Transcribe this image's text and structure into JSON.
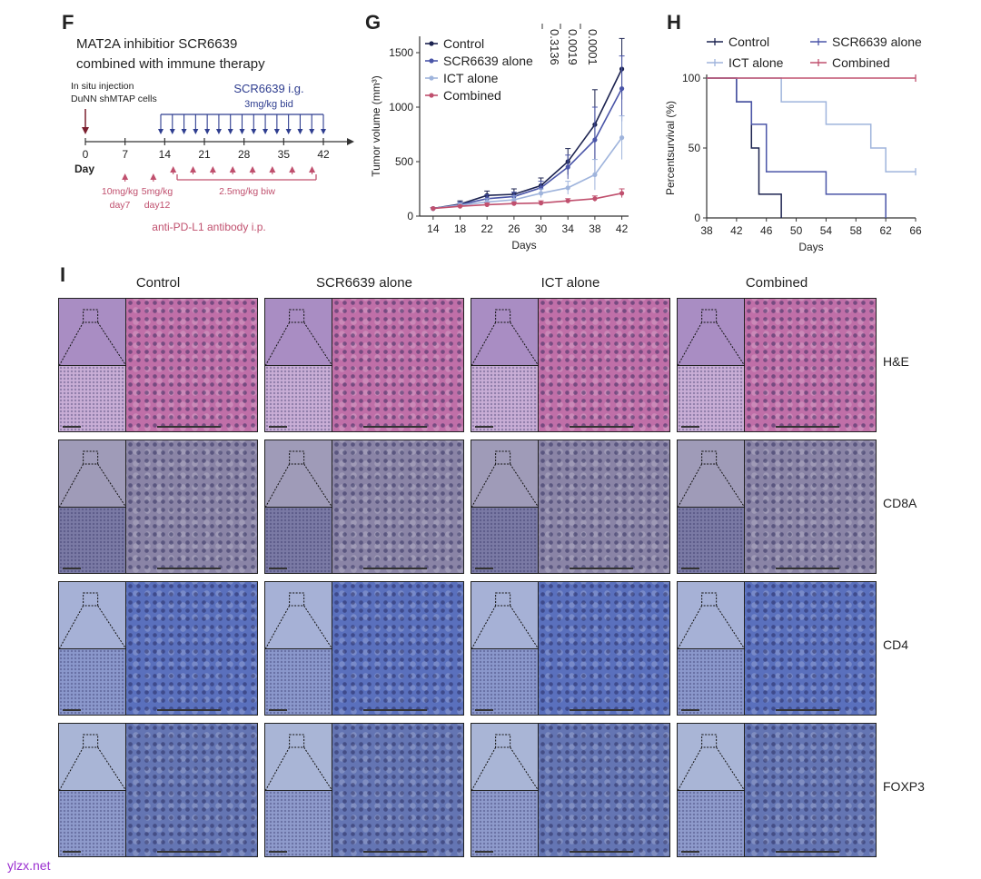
{
  "panelF": {
    "letter": "F",
    "title_line1": "MAT2A inhibitior SCR6639",
    "title_line2": "combined with immune therapy",
    "injection_line1": "In situ injection",
    "injection_line2": "DuNN shMTAP cells",
    "scr_label": "SCR6639 i.g.",
    "scr_dose": "3mg/kg bid",
    "axis_ticks": [
      "0",
      "7",
      "14",
      "21",
      "28",
      "35",
      "42"
    ],
    "day_label": "Day",
    "dose1_line1": "10mg/kg",
    "dose1_line2": "day7",
    "dose2_line1": "5mg/kg",
    "dose2_line2": "day12",
    "dose3": "2.5mg/kg biw",
    "antibody_label": "anti-PD-L1 antibody i.p.",
    "colors": {
      "scr": "#2e3d8f",
      "antibody": "#c0506e",
      "axis": "#333333"
    }
  },
  "panelG": {
    "letter": "G",
    "chart_data": {
      "type": "line",
      "x": [
        14,
        18,
        22,
        26,
        30,
        34,
        38,
        42
      ],
      "xlabel": "Days",
      "ylabel": "Tumor volume (mm³)",
      "xticks": [
        "14",
        "18",
        "22",
        "26",
        "30",
        "34",
        "38",
        "42"
      ],
      "yticks": [
        "0",
        "500",
        "1000",
        "1500"
      ],
      "ylim": [
        0,
        1650
      ],
      "series": [
        {
          "name": "Control",
          "color": "#1c2350",
          "values": [
            70,
            110,
            190,
            200,
            280,
            500,
            840,
            1350
          ],
          "errors": [
            8,
            30,
            40,
            50,
            70,
            120,
            320,
            280
          ]
        },
        {
          "name": "SCR6639 alone",
          "color": "#4a55a8",
          "values": [
            70,
            105,
            160,
            180,
            260,
            450,
            700,
            1170
          ],
          "errors": [
            8,
            25,
            35,
            40,
            60,
            110,
            300,
            300
          ]
        },
        {
          "name": "ICT alone",
          "color": "#9fb4dc",
          "values": [
            70,
            100,
            130,
            150,
            210,
            260,
            380,
            720
          ],
          "errors": [
            8,
            20,
            30,
            35,
            40,
            60,
            140,
            200
          ]
        },
        {
          "name": "Combined",
          "color": "#c0506e",
          "values": [
            70,
            90,
            105,
            115,
            120,
            140,
            160,
            210
          ],
          "errors": [
            8,
            10,
            15,
            15,
            20,
            20,
            25,
            40
          ]
        }
      ],
      "pvalues": [
        "0.3136",
        "0.0019",
        "0.0001"
      ],
      "legend": "top-left"
    }
  },
  "panelH": {
    "letter": "H",
    "chart_data": {
      "type": "line",
      "xlabel": "Days",
      "ylabel": "Percentsurvival (%)",
      "xticks": [
        "38",
        "42",
        "46",
        "50",
        "54",
        "58",
        "62",
        "66"
      ],
      "yticks": [
        "0",
        "50",
        "100"
      ],
      "xlim": [
        38,
        66
      ],
      "ylim": [
        0,
        100
      ],
      "series": [
        {
          "name": "Control",
          "color": "#1c2350",
          "steps": [
            [
              38,
              100
            ],
            [
              42,
              100
            ],
            [
              42,
              83
            ],
            [
              44,
              83
            ],
            [
              44,
              50
            ],
            [
              45,
              50
            ],
            [
              45,
              17
            ],
            [
              48,
              17
            ],
            [
              48,
              0
            ]
          ]
        },
        {
          "name": "SCR6639 alone",
          "color": "#4a55a8",
          "steps": [
            [
              38,
              100
            ],
            [
              42,
              100
            ],
            [
              42,
              83
            ],
            [
              44,
              83
            ],
            [
              44,
              67
            ],
            [
              46,
              67
            ],
            [
              46,
              33
            ],
            [
              54,
              33
            ],
            [
              54,
              17
            ],
            [
              62,
              17
            ],
            [
              62,
              0
            ]
          ]
        },
        {
          "name": "ICT alone",
          "color": "#9fb4dc",
          "steps": [
            [
              38,
              100
            ],
            [
              48,
              100
            ],
            [
              48,
              83
            ],
            [
              54,
              83
            ],
            [
              54,
              67
            ],
            [
              60,
              67
            ],
            [
              60,
              50
            ],
            [
              62,
              50
            ],
            [
              62,
              33
            ],
            [
              66,
              33
            ]
          ]
        },
        {
          "name": "Combined",
          "color": "#c0506e",
          "steps": [
            [
              38,
              100
            ],
            [
              66,
              100
            ]
          ]
        }
      ],
      "legend": "top"
    }
  },
  "panelI": {
    "letter": "I",
    "columns": [
      "Control",
      "SCR6639 alone",
      "ICT alone",
      "Combined"
    ],
    "rows": [
      "H&E",
      "CD8A",
      "CD4",
      "FOXP3"
    ],
    "row_colors": {
      "H&E": {
        "overview": "#a98dc3",
        "low": "#c9aed6",
        "high": "#c06fa8"
      },
      "CD8A": {
        "overview": "#9f9bb8",
        "low": "#7b7aa5",
        "high": "#8a84a6"
      },
      "CD4": {
        "overview": "#a6b1d6",
        "low": "#8b98cc",
        "high": "#5a70bd"
      },
      "FOXP3": {
        "overview": "#a9b5d6",
        "low": "#8f9bcc",
        "high": "#6475b3"
      }
    }
  },
  "watermark": "ylzx.net"
}
